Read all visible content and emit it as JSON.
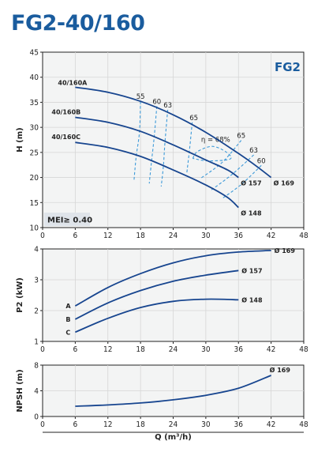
{
  "title": "FG2-40/160",
  "colors": {
    "curve": "#17458f",
    "efficiency": "#3d9ad9",
    "title": "#1a5c9e",
    "panel_bg": "#f3f4f4",
    "grid": "#d6d6d6"
  },
  "chart_data": [
    {
      "type": "line",
      "label": "FG2",
      "ylabel": "H (m)",
      "xlim": [
        0,
        48
      ],
      "ylim": [
        10,
        45
      ],
      "xticks": [
        0,
        6,
        12,
        18,
        24,
        30,
        36,
        42,
        48
      ],
      "yticks": [
        10,
        15,
        20,
        25,
        30,
        35,
        40,
        45
      ],
      "annotation": "MEI≥ 0.40",
      "series": [
        {
          "name": "40/160A",
          "end_label": "Ø 169",
          "points": [
            [
              6,
              38
            ],
            [
              12,
              37
            ],
            [
              18,
              35.2
            ],
            [
              24,
              32.5
            ],
            [
              30,
              29
            ],
            [
              36,
              24.8
            ],
            [
              39,
              22.5
            ],
            [
              42,
              20
            ]
          ]
        },
        {
          "name": "40/160B",
          "end_label": "Ø 157",
          "points": [
            [
              6,
              32
            ],
            [
              12,
              31
            ],
            [
              18,
              29.2
            ],
            [
              24,
              26.5
            ],
            [
              30,
              23.5
            ],
            [
              34,
              21.5
            ],
            [
              36,
              20
            ]
          ]
        },
        {
          "name": "40/160C",
          "end_label": "Ø 148",
          "points": [
            [
              6,
              27
            ],
            [
              12,
              26
            ],
            [
              18,
              24.2
            ],
            [
              24,
              21.5
            ],
            [
              30,
              18.5
            ],
            [
              34,
              16
            ],
            [
              36,
              14
            ]
          ]
        }
      ],
      "efficiency_curves": [
        {
          "label": "55",
          "points": [
            [
              18,
              35.2
            ],
            [
              17.8,
              29
            ],
            [
              17.2,
              24.2
            ],
            [
              16.8,
              19.5
            ]
          ]
        },
        {
          "label": "60",
          "points": [
            [
              21,
              34.2
            ],
            [
              20.5,
              28
            ],
            [
              20,
              23
            ],
            [
              19.6,
              18.8
            ]
          ]
        },
        {
          "label": "63",
          "points": [
            [
              23,
              33.5
            ],
            [
              22.5,
              27.2
            ],
            [
              22.2,
              22.3
            ],
            [
              21.8,
              18.2
            ]
          ]
        },
        {
          "label": "65",
          "points": [
            [
              27.5,
              31
            ],
            [
              27,
              25.5
            ],
            [
              26.5,
              20.8
            ]
          ]
        },
        {
          "label": "η = 68%",
          "points": [
            [
              27.6,
              23.8
            ],
            [
              28.5,
              25.2
            ],
            [
              31.2,
              26.2
            ],
            [
              33.7,
              25.1
            ],
            [
              34.5,
              23.7
            ],
            [
              30.5,
              23.3
            ],
            [
              27.6,
              23.8
            ]
          ]
        },
        {
          "label": "65",
          "points": [
            [
              36.5,
              27.4
            ],
            [
              33,
              23
            ],
            [
              29,
              19.8
            ]
          ]
        },
        {
          "label": "63",
          "points": [
            [
              38.8,
              24.5
            ],
            [
              34.8,
              20.6
            ],
            [
              31,
              17.5
            ]
          ]
        },
        {
          "label": "60",
          "points": [
            [
              40.2,
              22.4
            ],
            [
              36.5,
              18.6
            ],
            [
              33,
              15.8
            ]
          ]
        }
      ]
    },
    {
      "type": "line",
      "ylabel": "P2 (kW)",
      "xlim": [
        0,
        48
      ],
      "ylim": [
        1,
        4
      ],
      "xticks": [
        0,
        6,
        12,
        18,
        24,
        30,
        36,
        42,
        48
      ],
      "yticks": [
        1,
        2,
        3,
        4
      ],
      "series": [
        {
          "name": "A",
          "end_label": "Ø 169",
          "points": [
            [
              6,
              2.15
            ],
            [
              12,
              2.75
            ],
            [
              18,
              3.2
            ],
            [
              24,
              3.55
            ],
            [
              30,
              3.78
            ],
            [
              36,
              3.9
            ],
            [
              42,
              3.95
            ]
          ]
        },
        {
          "name": "B",
          "end_label": "Ø 157",
          "points": [
            [
              6,
              1.72
            ],
            [
              12,
              2.25
            ],
            [
              18,
              2.65
            ],
            [
              24,
              2.95
            ],
            [
              30,
              3.15
            ],
            [
              36,
              3.3
            ]
          ]
        },
        {
          "name": "C",
          "end_label": "Ø 148",
          "points": [
            [
              6,
              1.3
            ],
            [
              12,
              1.75
            ],
            [
              18,
              2.1
            ],
            [
              24,
              2.3
            ],
            [
              30,
              2.37
            ],
            [
              36,
              2.35
            ]
          ]
        }
      ]
    },
    {
      "type": "line",
      "ylabel": "NPSH (m)",
      "xlabel": "Q (m³/h)",
      "xlim": [
        0,
        48
      ],
      "ylim": [
        0,
        8
      ],
      "xticks": [
        0,
        6,
        12,
        18,
        24,
        30,
        36,
        42,
        48
      ],
      "yticks": [
        0,
        4,
        8
      ],
      "series": [
        {
          "name": "",
          "end_label": "Ø 169",
          "points": [
            [
              6,
              1.6
            ],
            [
              12,
              1.8
            ],
            [
              18,
              2.1
            ],
            [
              24,
              2.6
            ],
            [
              30,
              3.3
            ],
            [
              36,
              4.4
            ],
            [
              42,
              6.4
            ]
          ]
        }
      ]
    }
  ]
}
